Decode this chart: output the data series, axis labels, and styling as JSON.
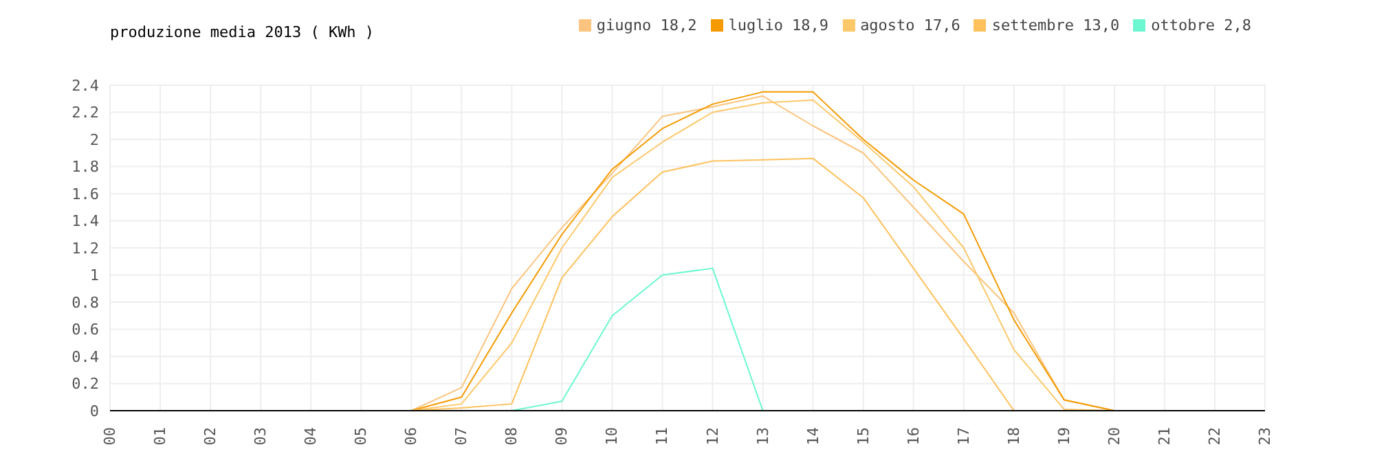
{
  "chart_data": {
    "type": "line",
    "title": "produzione media 2013 ( KWh )",
    "categories": [
      "00",
      "01",
      "02",
      "03",
      "04",
      "05",
      "06",
      "07",
      "08",
      "09",
      "10",
      "11",
      "12",
      "13",
      "14",
      "15",
      "16",
      "17",
      "18",
      "19",
      "20",
      "21",
      "22",
      "23"
    ],
    "series": [
      {
        "name": "giugno 18,2",
        "color": "#fcc47e",
        "values": [
          null,
          null,
          null,
          null,
          null,
          null,
          0,
          0.17,
          0.9,
          1.35,
          1.75,
          2.17,
          2.24,
          2.32,
          2.1,
          1.9,
          1.5,
          1.1,
          0.72,
          0.08,
          0,
          null,
          null,
          null
        ]
      },
      {
        "name": "luglio 18,9",
        "color": "#f59a00",
        "values": [
          null,
          null,
          null,
          null,
          null,
          null,
          0,
          0.1,
          0.72,
          1.3,
          1.78,
          2.08,
          2.26,
          2.35,
          2.35,
          2.0,
          1.7,
          1.45,
          0.67,
          0.08,
          0,
          null,
          null,
          null
        ]
      },
      {
        "name": "agosto 17,6",
        "color": "#fdc86a",
        "values": [
          null,
          null,
          null,
          null,
          null,
          null,
          0,
          0.05,
          0.5,
          1.2,
          1.72,
          1.98,
          2.2,
          2.27,
          2.29,
          1.98,
          1.65,
          1.2,
          0.45,
          0.01,
          0,
          null,
          null,
          null
        ]
      },
      {
        "name": "settembre 13,0",
        "color": "#fec15c",
        "values": [
          null,
          null,
          null,
          null,
          null,
          null,
          0,
          0.02,
          0.05,
          0.98,
          1.43,
          1.76,
          1.84,
          1.85,
          1.86,
          1.57,
          1.05,
          0.53,
          0,
          null,
          null,
          null,
          null,
          null
        ]
      },
      {
        "name": "ottobre 2,8",
        "color": "#6cf7d0",
        "values": [
          null,
          null,
          null,
          null,
          null,
          null,
          null,
          null,
          0,
          0.07,
          0.7,
          1.0,
          1.05,
          0,
          null,
          null,
          null,
          null,
          null,
          null,
          null,
          null,
          null,
          null
        ]
      }
    ],
    "ylim": [
      0,
      2.4
    ],
    "yticks": [
      0,
      0.2,
      0.4,
      0.6,
      0.8,
      1,
      1.2,
      1.4,
      1.6,
      1.8,
      2,
      2.2,
      2.4
    ],
    "grid": true,
    "legend": "top right",
    "marker": "none",
    "line_style": "solid"
  }
}
